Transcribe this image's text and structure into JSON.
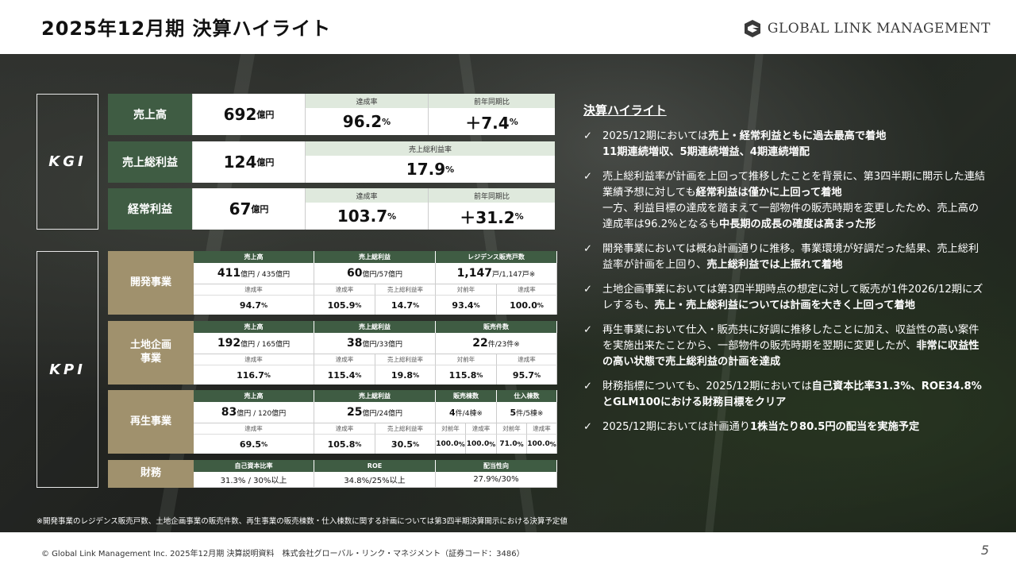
{
  "title": "2025年12月期 決算ハイライト",
  "logo_text": "GLOBAL LINK MANAGEMENT",
  "labels": {
    "kgi": "KGI",
    "kpi": "KPI"
  },
  "kgi": {
    "sales": {
      "name": "売上高",
      "value": "692",
      "unit": "億円",
      "h1": "達成率",
      "v1": "96.2",
      "u1": "%",
      "h2": "前年同期比",
      "v2": "＋7.4",
      "u2": "%"
    },
    "gross": {
      "name": "売上総利益",
      "value": "124",
      "unit": "億円",
      "h1": "売上総利益率",
      "v1": "17.9",
      "u1": "%"
    },
    "ordinary": {
      "name": "経常利益",
      "value": "67",
      "unit": "億円",
      "h1": "達成率",
      "v1": "103.7",
      "u1": "%",
      "h2": "前年同期比",
      "v2": "＋31.2",
      "u2": "%"
    }
  },
  "kpi": {
    "dev": {
      "name": "開発事業",
      "h": [
        "売上高",
        "売上総利益",
        "レジデンス販売戸数"
      ],
      "v": [
        {
          "a": "411",
          "b": "億円 / 435億円"
        },
        {
          "a": "60",
          "b": "億円/57億円"
        },
        {
          "a": "1,147",
          "b": "戸/1,147戸※"
        }
      ],
      "sh": [
        "達成率",
        "達成率",
        "売上総利益率",
        "対前年",
        "達成率"
      ],
      "sv": [
        "94.7",
        "105.9",
        "14.7",
        "93.4",
        "100.0"
      ]
    },
    "land": {
      "name": "土地企画\n事業",
      "h": [
        "売上高",
        "売上総利益",
        "販売件数"
      ],
      "v": [
        {
          "a": "192",
          "b": "億円 / 165億円"
        },
        {
          "a": "38",
          "b": "億円/33億円"
        },
        {
          "a": "22",
          "b": "件/23件※"
        }
      ],
      "sh": [
        "達成率",
        "達成率",
        "売上総利益率",
        "対前年",
        "達成率"
      ],
      "sv": [
        "116.7",
        "115.4",
        "19.8",
        "115.8",
        "95.7"
      ]
    },
    "regen": {
      "name": "再生事業",
      "h": [
        "売上高",
        "売上総利益",
        "販売棟数",
        "仕入棟数"
      ],
      "v": [
        {
          "a": "83",
          "b": "億円 / 120億円"
        },
        {
          "a": "25",
          "b": "億円/24億円"
        },
        {
          "a": "4",
          "b": "件/4棟※"
        },
        {
          "a": "5",
          "b": "件/5棟※"
        }
      ],
      "sh": [
        "達成率",
        "達成率",
        "売上総利益率",
        "対前年",
        "達成率",
        "対前年",
        "達成率"
      ],
      "sv": [
        "69.5",
        "105.8",
        "30.5",
        "100.0",
        "100.0",
        "71.0",
        "100.0"
      ]
    },
    "fin": {
      "name": "財務",
      "h": [
        "自己資本比率",
        "ROE",
        "配当性向"
      ],
      "v": [
        "31.3% / 30%以上",
        "34.8%/25%以上",
        "27.9%/30%"
      ]
    },
    "pct": "%"
  },
  "highlights": {
    "title": "決算ハイライト",
    "items": [
      [
        "2025/12期においては",
        "売上・経常利益ともに過去最高で着地",
        "",
        "11期連続増収、5期連続増益、4期連続増配",
        ""
      ],
      [
        "売上総利益率が計画を上回って推移したことを背景に、第3四半期に開示した連結業績予想に対しても",
        "経常利益は僅かに上回って着地",
        "一方、利益目標の達成を踏まえて一部物件の販売時期を変更したため、売上高の達成率は96.2%となるも",
        "中長期の成長の確度は高まった形",
        ""
      ],
      [
        "開発事業においては概ね計画通りに推移。事業環境が好調だった結果、売上総利益率が計画を上回り、",
        "売上総利益では上振れて着地",
        "",
        "",
        ""
      ],
      [
        "土地企画事業においては第3四半期時点の想定に対して販売が1件2026/12期にズレするも、",
        "売上・売上総利益については計画を大きく上回って着地",
        "",
        "",
        ""
      ],
      [
        "再生事業において仕入・販売共に好調に推移したことに加え、収益性の高い案件を実施出来たことから、一部物件の販売時期を翌期に変更したが、",
        "非常に収益性の高い状態で売上総利益の計画を達成",
        "",
        "",
        ""
      ],
      [
        "財務指標についても、2025/12期においては",
        "自己資本比率31.3%、ROE34.8%とGLM100における財務目標をクリア",
        "",
        "",
        ""
      ],
      [
        "2025/12期においては計画通り",
        "1株当たり80.5円の配当を実施予定",
        "",
        "",
        ""
      ]
    ]
  },
  "footnote": "※開発事業のレジデンス販売戸数、土地企画事業の販売件数、再生事業の販売棟数・仕入棟数に関する計画については第3四半期決算開示における決算予定値",
  "copyright": "© Global Link Management Inc. 2025年12月期 決算説明資料　株式会社グローバル・リンク・マネジメント（証券コード：3486）",
  "page": "5"
}
